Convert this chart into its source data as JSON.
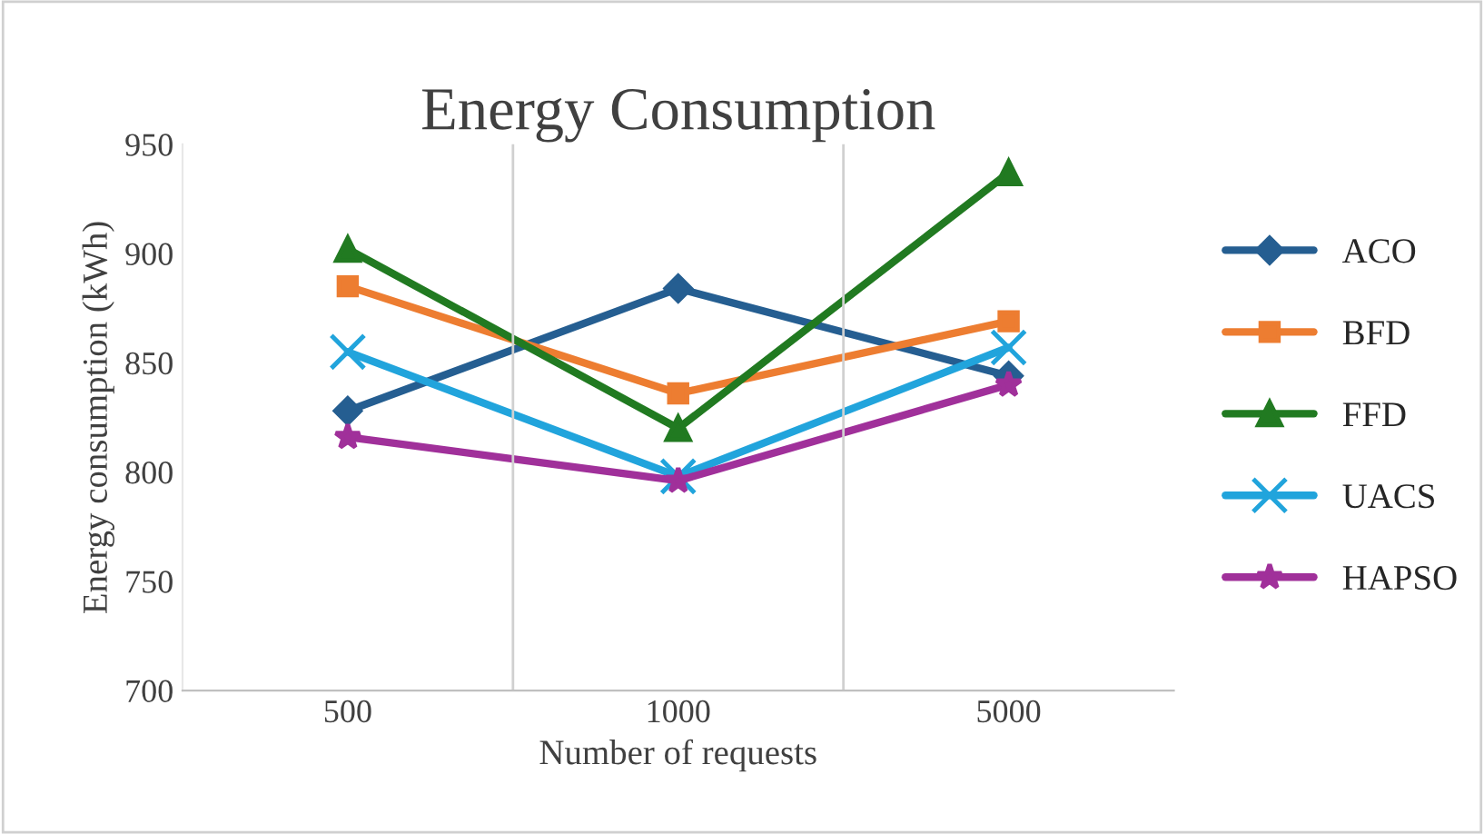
{
  "chart_data": {
    "type": "line",
    "title": "Energy Consumption",
    "xlabel": "Number of requests",
    "ylabel": "Energy consumption (kWh)",
    "categories": [
      "500",
      "1000",
      "5000"
    ],
    "series": [
      {
        "name": "ACO",
        "color": "#255e91",
        "marker": "diamond",
        "values": [
          828,
          884,
          844
        ]
      },
      {
        "name": "BFD",
        "color": "#ed7d31",
        "marker": "square",
        "values": [
          885,
          836,
          869
        ]
      },
      {
        "name": "FFD",
        "color": "#217a21",
        "marker": "triangle",
        "values": [
          902,
          820,
          937
        ]
      },
      {
        "name": "UACS",
        "color": "#21a4dc",
        "marker": "cross",
        "values": [
          855,
          798,
          857
        ]
      },
      {
        "name": "HAPSO",
        "color": "#a0309a",
        "marker": "star",
        "values": [
          816,
          796,
          840
        ]
      }
    ],
    "ylim": [
      700,
      950
    ],
    "yticks": [
      700,
      750,
      800,
      850,
      900,
      950
    ],
    "grid": "x",
    "legend": "right",
    "line_style": "solid"
  }
}
